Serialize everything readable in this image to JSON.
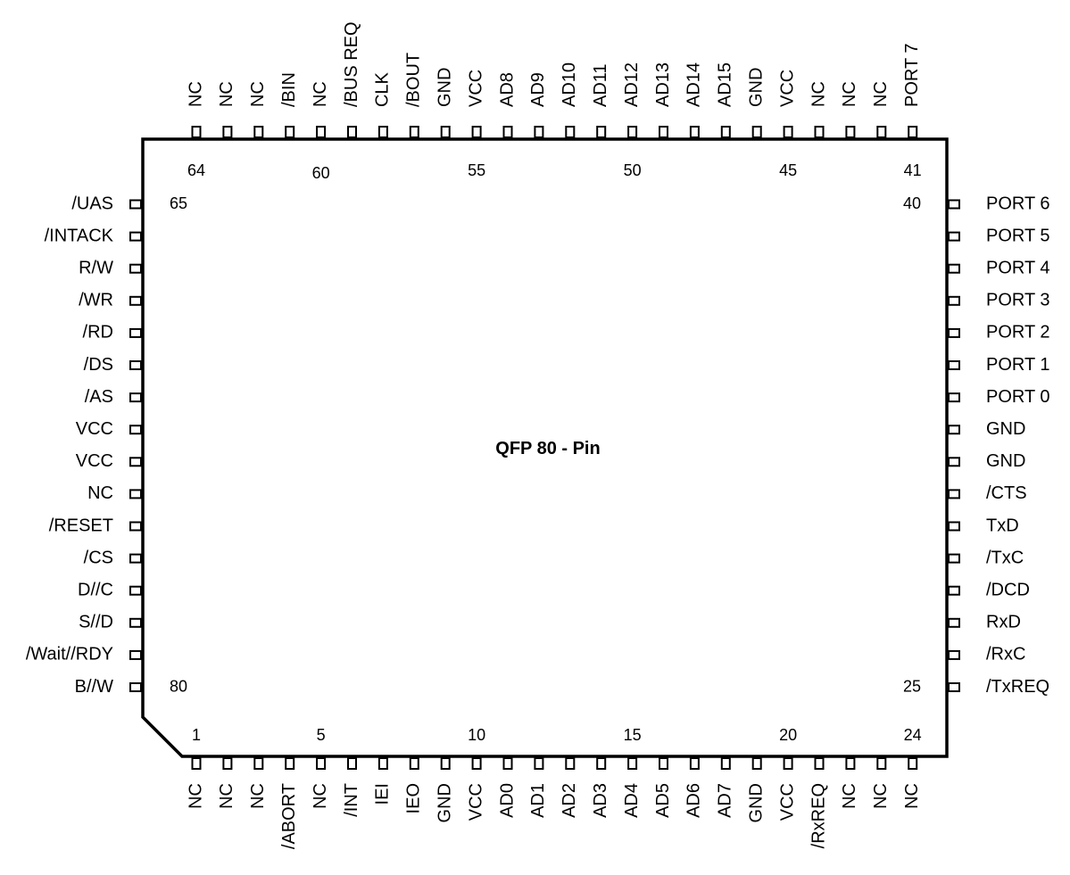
{
  "package": {
    "title": "QFP 80 - Pin"
  },
  "pins": {
    "bottom": [
      "NC",
      "NC",
      "NC",
      "/ABORT",
      "NC",
      "/INT",
      "IEI",
      "IEO",
      "GND",
      "VCC",
      "AD0",
      "AD1",
      "AD2",
      "AD3",
      "AD4",
      "AD5",
      "AD6",
      "AD7",
      "GND",
      "VCC",
      "/RxREQ",
      "NC",
      "NC",
      "NC"
    ],
    "right": [
      "/TxREQ",
      "/RxC",
      "RxD",
      "/DCD",
      "/TxC",
      "TxD",
      "/CTS",
      "GND",
      "GND",
      "PORT 0",
      "PORT 1",
      "PORT 2",
      "PORT 3",
      "PORT 4",
      "PORT 5",
      "PORT 6"
    ],
    "top": [
      "PORT 7",
      "NC",
      "NC",
      "NC",
      "VCC",
      "GND",
      "AD15",
      "AD14",
      "AD13",
      "AD12",
      "AD11",
      "AD10",
      "AD9",
      "AD8",
      "VCC",
      "GND",
      "/BOUT",
      "CLK",
      "/BUS REQ",
      "NC",
      "/BIN",
      "NC",
      "NC",
      "NC"
    ],
    "left": [
      "/UAS",
      "/INTACK",
      "R/W",
      "/WR",
      "/RD",
      "/DS",
      "/AS",
      "VCC",
      "VCC",
      "NC",
      "/RESET",
      "/CS",
      "D//C",
      "S//D",
      "/Wait//RDY",
      "B//W"
    ]
  },
  "pin_numbers": {
    "bottom": [
      "1",
      "5",
      "10",
      "15",
      "20",
      "24"
    ],
    "right": [
      "25",
      "40"
    ],
    "top": [
      "41",
      "45",
      "50",
      "55",
      "60",
      "64"
    ],
    "left": [
      "65",
      "80"
    ]
  }
}
